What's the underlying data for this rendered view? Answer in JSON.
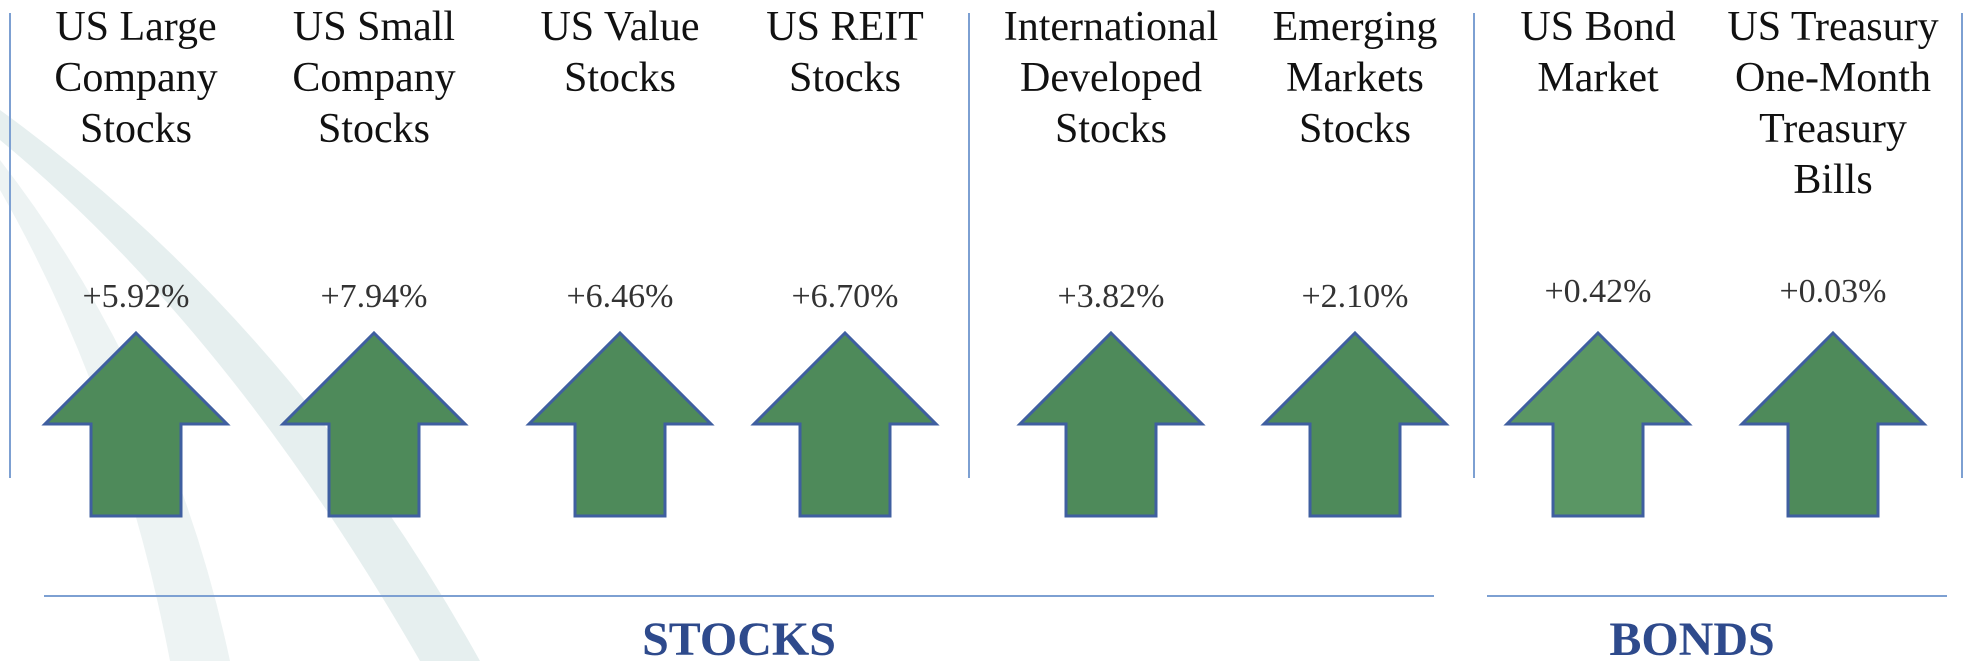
{
  "columns": [
    {
      "label_lines": [
        "US Large",
        "Company",
        "Stocks"
      ],
      "value": "+5.92%"
    },
    {
      "label_lines": [
        "US Small",
        "Company",
        "Stocks"
      ],
      "value": "+7.94%"
    },
    {
      "label_lines": [
        "US Value",
        "Stocks"
      ],
      "value": "+6.46%"
    },
    {
      "label_lines": [
        "US REIT",
        "Stocks"
      ],
      "value": "+6.70%"
    },
    {
      "label_lines": [
        "International",
        "Developed",
        "Stocks"
      ],
      "value": "+3.82%"
    },
    {
      "label_lines": [
        "Emerging",
        "Markets",
        "Stocks"
      ],
      "value": "+2.10%"
    },
    {
      "label_lines": [
        "US Bond",
        "Market"
      ],
      "value": "+0.42%"
    },
    {
      "label_lines": [
        "US Treasury",
        "One-Month",
        "Treasury",
        "Bills"
      ],
      "value": "+0.03%"
    }
  ],
  "groups": [
    {
      "label": "STOCKS"
    },
    {
      "label": "BONDS"
    }
  ]
}
